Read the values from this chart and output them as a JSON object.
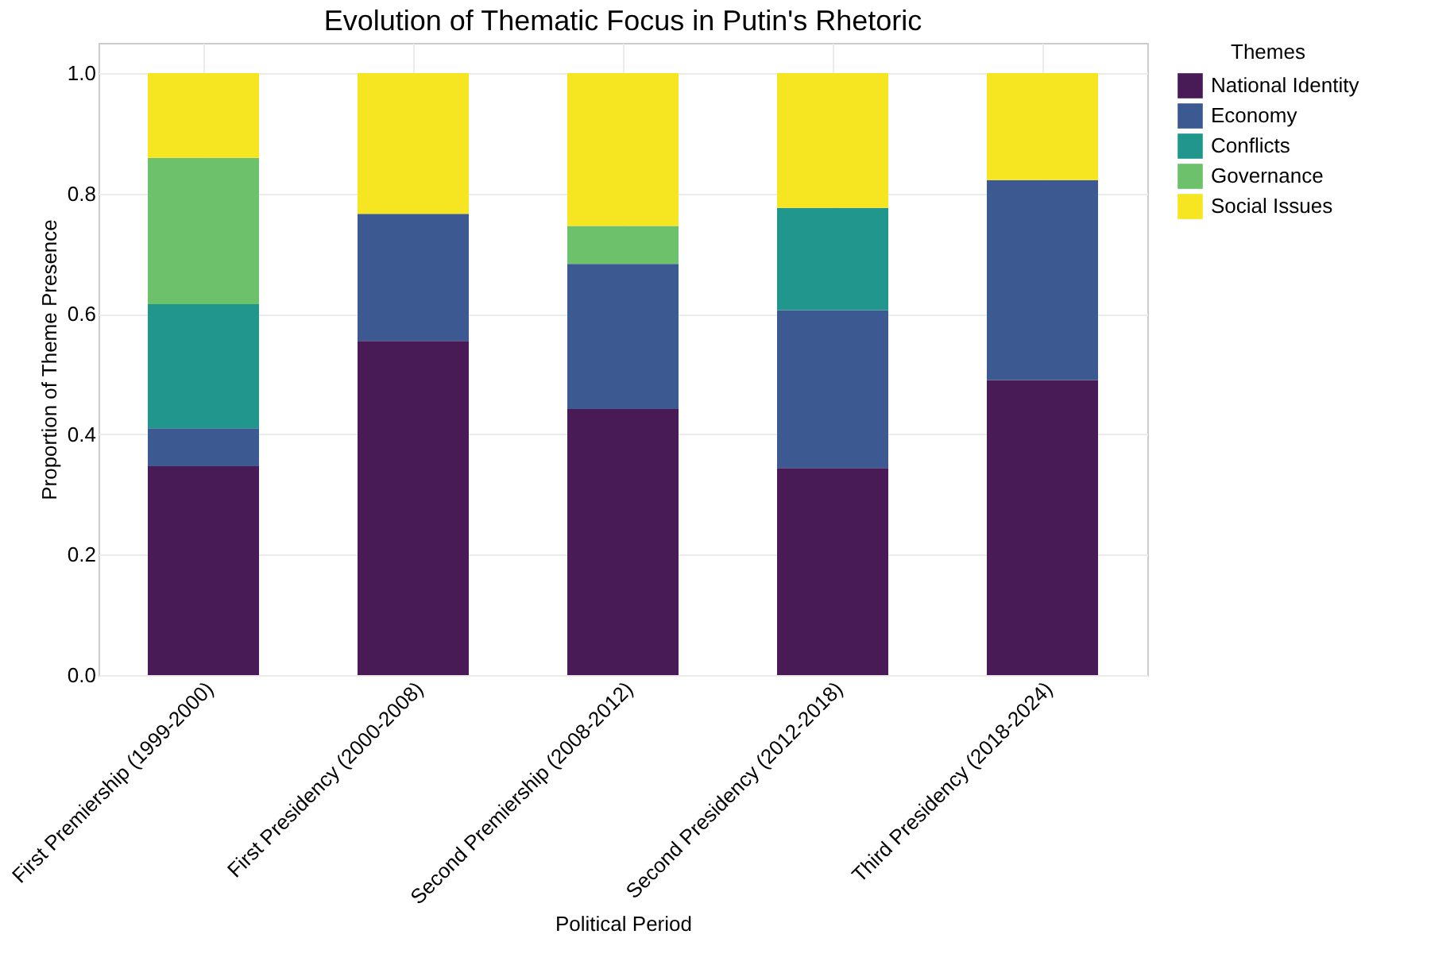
{
  "chart_data": {
    "type": "bar",
    "stacked": true,
    "title": "Evolution of Thematic Focus in Putin's Rhetoric",
    "xlabel": "Political Period",
    "ylabel": "Proportion of Theme Presence",
    "legend_title": "Themes",
    "legend": "top right",
    "grid": true,
    "categories": [
      "First Premiership (1999-2000)",
      "First Presidency (2000-2008)",
      "Second Premiership (2008-2012)",
      "Second Presidency (2012-2018)",
      "Third Presidency (2018-2024)"
    ],
    "ylim": [
      0,
      1.05
    ],
    "yticks": [
      {
        "value": 0,
        "label": "0.0"
      },
      {
        "value": 0.2,
        "label": "0.2"
      },
      {
        "value": 0.4,
        "label": "0.4"
      },
      {
        "value": 0.6,
        "label": "0.6"
      },
      {
        "value": 0.8,
        "label": "0.8"
      },
      {
        "value": 1,
        "label": "1.0"
      }
    ],
    "series": [
      {
        "name": "National Identity",
        "color": "#481a56",
        "values": [
          0.347,
          0.555,
          0.442,
          0.344,
          0.49
        ]
      },
      {
        "name": "Economy",
        "color": "#3c5a91",
        "values": [
          0.063,
          0.211,
          0.241,
          0.262,
          0.332
        ]
      },
      {
        "name": "Conflicts",
        "color": "#21968d",
        "values": [
          0.206,
          null,
          null,
          0.17,
          null
        ]
      },
      {
        "name": "Governance",
        "color": "#6cc16a",
        "values": [
          0.243,
          null,
          0.063,
          null,
          null
        ]
      },
      {
        "name": "Social Issues",
        "color": "#f6e621",
        "values": [
          0.141,
          0.234,
          0.254,
          0.224,
          0.178
        ]
      }
    ]
  }
}
